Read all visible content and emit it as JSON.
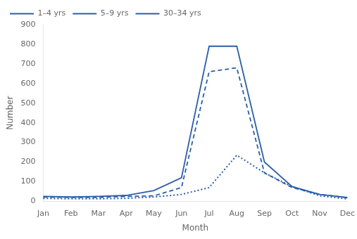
{
  "chart_data": {
    "type": "line",
    "xlabel": "Month",
    "ylabel": "Number",
    "categories": [
      "Jan",
      "Feb",
      "Mar",
      "Apr",
      "May",
      "Jun",
      "Jul",
      "Aug",
      "Sep",
      "Oct",
      "Nov",
      "Dec"
    ],
    "series": [
      {
        "name": "1–4 yrs",
        "color": "#2b5ea7",
        "line_style": "solid",
        "values": [
          25,
          22,
          25,
          30,
          55,
          120,
          790,
          790,
          200,
          75,
          35,
          20
        ]
      },
      {
        "name": "5–9 yrs",
        "color": "#2b5ea7",
        "line_style": "dashed",
        "values": [
          22,
          20,
          20,
          25,
          28,
          70,
          660,
          680,
          145,
          70,
          35,
          18
        ]
      },
      {
        "name": "30–34 yrs",
        "color": "#2b5ea7",
        "line_style": "dotted",
        "values": [
          15,
          13,
          13,
          15,
          22,
          35,
          70,
          235,
          145,
          75,
          28,
          12
        ]
      }
    ],
    "ylim": [
      0,
      900
    ],
    "yticks": [
      0,
      100,
      200,
      300,
      400,
      500,
      600,
      700,
      800,
      900
    ],
    "grid": false,
    "legend": "upper left"
  }
}
